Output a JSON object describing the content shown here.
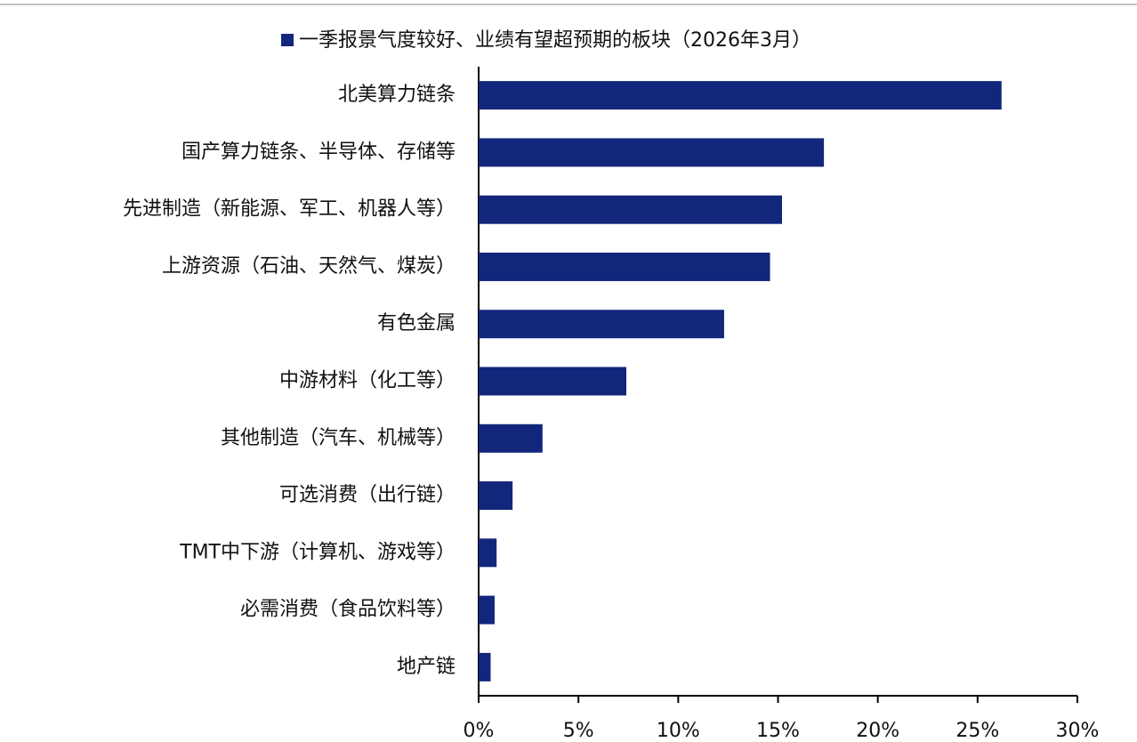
{
  "chart_data": {
    "type": "bar",
    "orientation": "horizontal",
    "categories": [
      "北美算力链条",
      "国产算力链条、半导体、存储等",
      "先进制造（新能源、军工、机器人等）",
      "上游资源（石油、天然气、煤炭）",
      "有色金属",
      "中游材料（化工等）",
      "其他制造（汽车、机械等）",
      "可选消费（出行链）",
      "TMT中下游（计算机、游戏等）",
      "必需消费（食品饮料等）",
      "地产链"
    ],
    "series": [
      {
        "name": "一季报景气度较好、业绩有望超预期的板块（2026年3月）",
        "color": "#12267c",
        "values": [
          26.2,
          17.3,
          15.2,
          14.6,
          12.3,
          7.4,
          3.2,
          1.7,
          0.9,
          0.8,
          0.6
        ]
      }
    ],
    "xlim": [
      0,
      30
    ],
    "xticks": [
      {
        "value": 0,
        "label": "0%"
      },
      {
        "value": 5,
        "label": "5%"
      },
      {
        "value": 10,
        "label": "10%"
      },
      {
        "value": 15,
        "label": "15%"
      },
      {
        "value": 20,
        "label": "20%"
      },
      {
        "value": 25,
        "label": "25%"
      },
      {
        "value": 30,
        "label": "30%"
      }
    ],
    "legend": "top"
  }
}
